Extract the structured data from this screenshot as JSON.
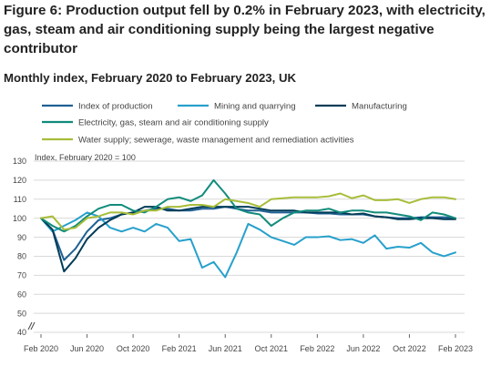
{
  "title": "Figure 6: Production output fell by 0.2% in February 2023, with electricity, gas, steam and air conditioning supply being the largest negative contributor",
  "subtitle": "Monthly index, February 2020 to February 2023, UK",
  "chart_data": {
    "type": "line",
    "ylabel": "Index, February 2020 = 100",
    "ylim": [
      40,
      130
    ],
    "y_ticks": [
      40,
      50,
      60,
      70,
      80,
      90,
      100,
      110,
      120,
      130
    ],
    "axis_break": true,
    "grid": "horizontal",
    "legend_position": "top",
    "x_tick_labels": [
      "Feb 2020",
      "Jun 2020",
      "Oct 2020",
      "Feb 2021",
      "Jun 2021",
      "Oct 2021",
      "Feb 2022",
      "Jun 2022",
      "Oct 2022",
      "Feb 2023"
    ],
    "x": [
      "Feb 2020",
      "Mar 2020",
      "Apr 2020",
      "May 2020",
      "Jun 2020",
      "Jul 2020",
      "Aug 2020",
      "Sep 2020",
      "Oct 2020",
      "Nov 2020",
      "Dec 2020",
      "Jan 2021",
      "Feb 2021",
      "Mar 2021",
      "Apr 2021",
      "May 2021",
      "Jun 2021",
      "Jul 2021",
      "Aug 2021",
      "Sep 2021",
      "Oct 2021",
      "Nov 2021",
      "Dec 2021",
      "Jan 2022",
      "Feb 2022",
      "Mar 2022",
      "Apr 2022",
      "May 2022",
      "Jun 2022",
      "Jul 2022",
      "Aug 2022",
      "Sep 2022",
      "Oct 2022",
      "Nov 2022",
      "Dec 2022",
      "Jan 2023",
      "Feb 2023"
    ],
    "series": [
      {
        "name": "Index of production",
        "color": "#206095",
        "values": [
          100,
          94,
          78,
          84,
          93,
          99,
          100,
          102,
          103,
          104,
          105,
          105,
          104,
          104,
          105,
          105,
          106,
          105,
          104,
          104,
          103,
          103,
          103,
          103,
          102.5,
          102.5,
          102,
          102,
          102,
          101,
          100.5,
          100,
          100,
          100.5,
          100.5,
          100.5,
          100
        ]
      },
      {
        "name": "Mining and quarrying",
        "color": "#27a0cc",
        "values": [
          100,
          93,
          96,
          99,
          103,
          101,
          95,
          93,
          95,
          93,
          97,
          95,
          88,
          89,
          74,
          77,
          69,
          82,
          97,
          94,
          90,
          88,
          86,
          90,
          90,
          90.5,
          88.5,
          89,
          87,
          91,
          84,
          85,
          84.5,
          87,
          82,
          80,
          82
        ]
      },
      {
        "name": "Manufacturing",
        "color": "#003c57",
        "values": [
          100,
          94,
          72,
          79,
          89,
          95,
          99,
          102,
          103,
          106,
          106,
          104,
          104,
          105,
          106,
          106,
          106,
          106,
          106,
          105,
          104,
          104,
          104,
          103,
          103,
          103,
          103,
          102,
          102.5,
          101,
          100.5,
          99.5,
          99.5,
          100,
          100,
          99.5,
          99.5
        ]
      },
      {
        "name": "Electricity, gas, steam and air conditioning supply",
        "color": "#118c7b",
        "values": [
          100,
          96,
          93,
          96,
          101,
          105,
          107,
          107,
          104,
          103,
          106,
          110,
          111,
          109,
          112,
          120,
          113,
          105,
          103,
          102,
          96,
          100,
          103,
          104,
          104,
          105,
          103,
          104,
          104,
          103,
          103,
          102,
          101,
          99,
          103,
          102,
          100
        ]
      },
      {
        "name": "Water supply; sewerage, waste management and remediation activities",
        "color": "#a8bd3a",
        "values": [
          100,
          101,
          94,
          95,
          100,
          101,
          103,
          103,
          102,
          104,
          104,
          106,
          106,
          107,
          107,
          106,
          110,
          109,
          108,
          106,
          110,
          110.5,
          111,
          111,
          111,
          111.5,
          113,
          110.5,
          112,
          109.5,
          109.5,
          110,
          108,
          110,
          111,
          111,
          110
        ]
      }
    ]
  }
}
